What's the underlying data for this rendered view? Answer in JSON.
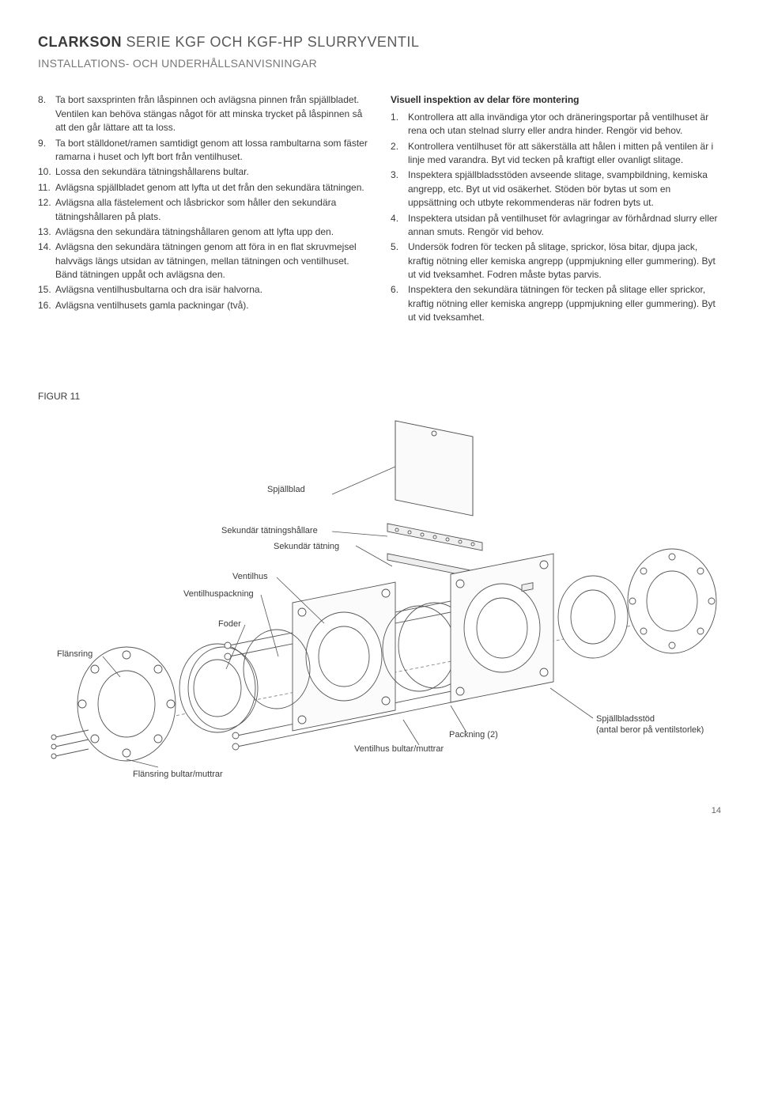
{
  "header": {
    "brand": "CLARKSON",
    "title_rest": " SERIE KGF OCH KGF-HP SLURRYVENTIL",
    "subtitle": "INSTALLATIONS- OCH UNDERHÅLLSANVISNINGAR"
  },
  "left_list": {
    "start": 7,
    "items": [
      "Ta bort saxsprinten från låspinnen och avlägsna pinnen från spjällbladet. Ventilen kan behöva stängas något för att minska trycket på låspinnen så att den går lättare att ta loss.",
      "Ta bort ställdonet/ramen samtidigt genom att lossa rambultarna som fäster ramarna i huset och lyft bort från ventilhuset.",
      "Lossa den sekundära tätningshållarens bultar.",
      "Avlägsna spjällbladet genom att lyfta ut det från den sekundära tätningen.",
      "Avlägsna alla fästelement och låsbrickor som håller den sekundära tätningshållaren på plats.",
      "Avlägsna den sekundära tätningshållaren genom att lyfta upp den.",
      "Avlägsna den sekundära tätningen genom att föra in en flat skruvmejsel halvvägs längs utsidan av tätningen, mellan tätningen och ventilhuset. Bänd tätningen uppåt och avlägsna den.",
      "Avlägsna ventilhusbultarna och dra isär halvorna.",
      "Avlägsna ventilhusets gamla packningar (två)."
    ]
  },
  "right_heading": "Visuell inspektion av delar före montering",
  "right_list": {
    "start": 0,
    "items": [
      "Kontrollera att alla invändiga ytor och dräneringsportar på ventilhuset är rena och utan stelnad slurry eller andra hinder. Rengör vid behov.",
      "Kontrollera ventilhuset för att säkerställa att hålen i mitten på ventilen är i linje med varandra. Byt vid tecken på kraftigt eller ovanligt slitage.",
      "Inspektera spjällbladsstöden avseende slitage, svampbildning, kemiska angrepp, etc. Byt ut vid osäkerhet. Stöden bör bytas ut som en uppsättning och utbyte rekommenderas när fodren byts ut.",
      "Inspektera utsidan på ventilhuset för avlagringar av förhårdnad slurry eller annan smuts. Rengör vid behov.",
      "Undersök fodren för tecken på slitage, sprickor, lösa bitar, djupa jack, kraftig nötning eller kemiska angrepp (uppmjukning eller gummering). Byt ut vid tveksamhet. Fodren måste bytas parvis.",
      "Inspektera den sekundära tätningen för tecken på slitage eller sprickor, kraftig nötning eller kemiska angrepp (uppmjukning eller gummering). Byt ut vid tveksamhet."
    ]
  },
  "figure": {
    "label": "FIGUR 11",
    "callouts": {
      "spjallblad": "Spjällblad",
      "sekundar_tatningshallare": "Sekundär tätningshållare",
      "sekundar_tatning": "Sekundär tätning",
      "ventilhus": "Ventilhus",
      "ventilhuspackning": "Ventilhuspackning",
      "foder": "Foder",
      "flansring": "Flänsring",
      "spjallbladsstod_1": "Spjällbladsstöd",
      "spjallbladsstod_2": "(antal beror på ventilstorlek)",
      "packning": "Packning (2)",
      "ventilhus_bultar": "Ventilhus bultar/muttrar",
      "flansring_bultar": "Flänsring bultar/muttrar"
    },
    "colors": {
      "stroke": "#555555",
      "fill": "#ffffff",
      "light": "#f5f5f5"
    }
  },
  "page_number": "14"
}
